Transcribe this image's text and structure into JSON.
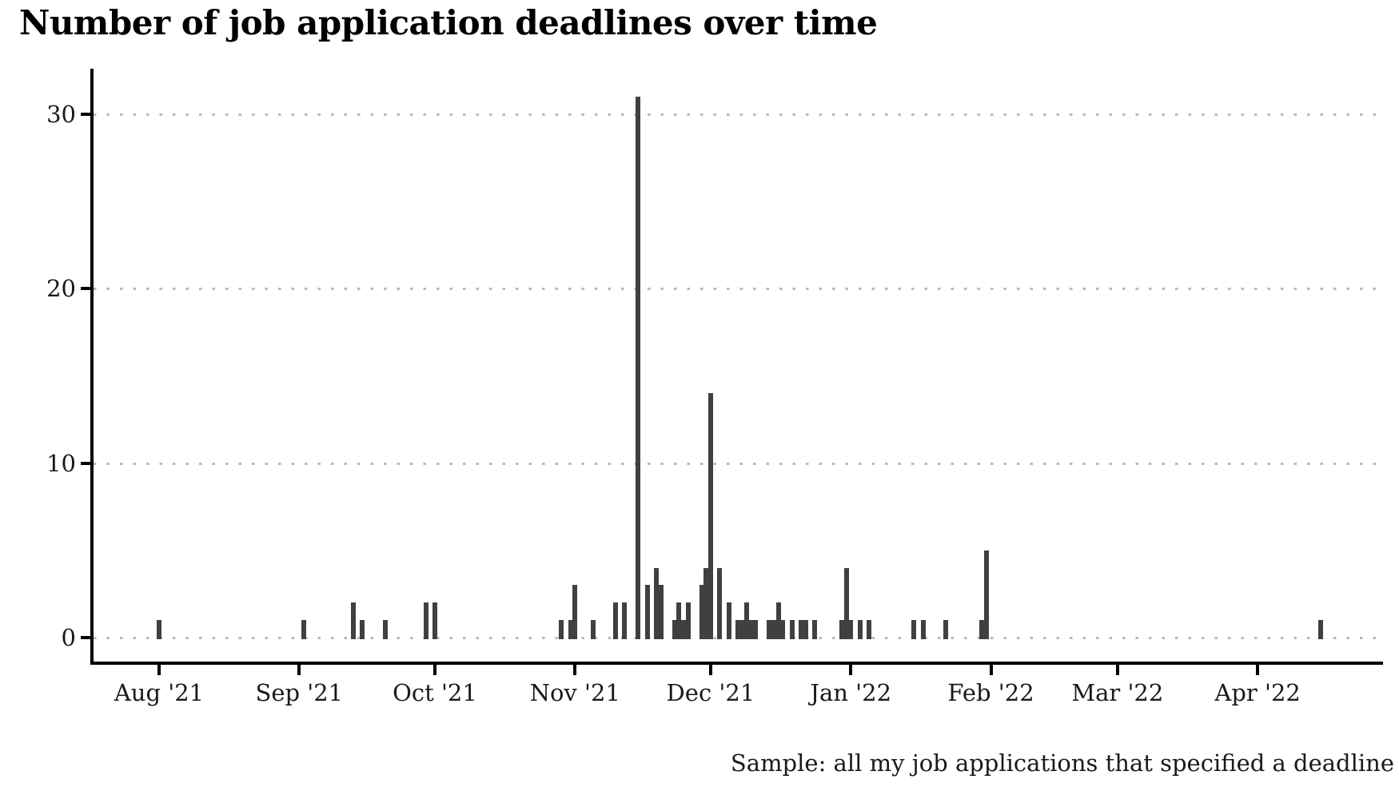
{
  "title": "Number of job application deadlines over time",
  "caption": "Sample: all my job applications that specified a deadline",
  "chart_data": {
    "type": "bar",
    "title": "Number of job application deadlines over time",
    "annotation": "Sample: all my job applications that specified a deadline",
    "x_axis": {
      "type": "date",
      "ticks": [
        {
          "label": "Aug '21",
          "date": "2021-08-01"
        },
        {
          "label": "Sep '21",
          "date": "2021-09-01"
        },
        {
          "label": "Oct '21",
          "date": "2021-10-01"
        },
        {
          "label": "Nov '21",
          "date": "2021-11-01"
        },
        {
          "label": "Dec '21",
          "date": "2021-12-01"
        },
        {
          "label": "Jan '22",
          "date": "2022-01-01"
        },
        {
          "label": "Feb '22",
          "date": "2022-02-01"
        },
        {
          "label": "Mar '22",
          "date": "2022-03-01"
        },
        {
          "label": "Apr '22",
          "date": "2022-04-01"
        }
      ]
    },
    "y_axis": {
      "tick_values": [
        0,
        10,
        20,
        30
      ],
      "range": [
        0,
        31.5
      ],
      "gridlines": "dotted-horizontal"
    },
    "style": {
      "bar_color": "#404040",
      "axis_color": "#000000",
      "grid_dot_color": "#b9b9b9",
      "text_color": "#1a1a1a",
      "background": "#ffffff",
      "legend": "none"
    },
    "points": [
      {
        "date": "2021-08-01",
        "value": 1
      },
      {
        "date": "2021-09-02",
        "value": 1
      },
      {
        "date": "2021-09-13",
        "value": 2
      },
      {
        "date": "2021-09-15",
        "value": 1
      },
      {
        "date": "2021-09-20",
        "value": 1
      },
      {
        "date": "2021-09-29",
        "value": 2
      },
      {
        "date": "2021-10-01",
        "value": 2
      },
      {
        "date": "2021-10-29",
        "value": 1
      },
      {
        "date": "2021-10-31",
        "value": 1
      },
      {
        "date": "2021-11-01",
        "value": 3
      },
      {
        "date": "2021-11-05",
        "value": 1
      },
      {
        "date": "2021-11-10",
        "value": 2
      },
      {
        "date": "2021-11-12",
        "value": 2
      },
      {
        "date": "2021-11-15",
        "value": 31
      },
      {
        "date": "2021-11-17",
        "value": 3
      },
      {
        "date": "2021-11-19",
        "value": 4
      },
      {
        "date": "2021-11-20",
        "value": 3
      },
      {
        "date": "2021-11-23",
        "value": 1
      },
      {
        "date": "2021-11-24",
        "value": 2
      },
      {
        "date": "2021-11-25",
        "value": 1
      },
      {
        "date": "2021-11-26",
        "value": 2
      },
      {
        "date": "2021-11-29",
        "value": 3
      },
      {
        "date": "2021-11-30",
        "value": 4
      },
      {
        "date": "2021-12-01",
        "value": 14
      },
      {
        "date": "2021-12-03",
        "value": 4
      },
      {
        "date": "2021-12-05",
        "value": 2
      },
      {
        "date": "2021-12-07",
        "value": 1
      },
      {
        "date": "2021-12-08",
        "value": 1
      },
      {
        "date": "2021-12-09",
        "value": 2
      },
      {
        "date": "2021-12-10",
        "value": 1
      },
      {
        "date": "2021-12-11",
        "value": 1
      },
      {
        "date": "2021-12-14",
        "value": 1
      },
      {
        "date": "2021-12-15",
        "value": 1
      },
      {
        "date": "2021-12-16",
        "value": 2
      },
      {
        "date": "2021-12-17",
        "value": 1
      },
      {
        "date": "2021-12-19",
        "value": 1
      },
      {
        "date": "2021-12-21",
        "value": 1
      },
      {
        "date": "2021-12-22",
        "value": 1
      },
      {
        "date": "2021-12-24",
        "value": 1
      },
      {
        "date": "2021-12-30",
        "value": 1
      },
      {
        "date": "2021-12-31",
        "value": 4
      },
      {
        "date": "2022-01-01",
        "value": 1
      },
      {
        "date": "2022-01-03",
        "value": 1
      },
      {
        "date": "2022-01-05",
        "value": 1
      },
      {
        "date": "2022-01-15",
        "value": 1
      },
      {
        "date": "2022-01-17",
        "value": 1
      },
      {
        "date": "2022-01-22",
        "value": 1
      },
      {
        "date": "2022-01-30",
        "value": 1
      },
      {
        "date": "2022-01-31",
        "value": 5
      },
      {
        "date": "2022-04-15",
        "value": 1
      }
    ]
  }
}
